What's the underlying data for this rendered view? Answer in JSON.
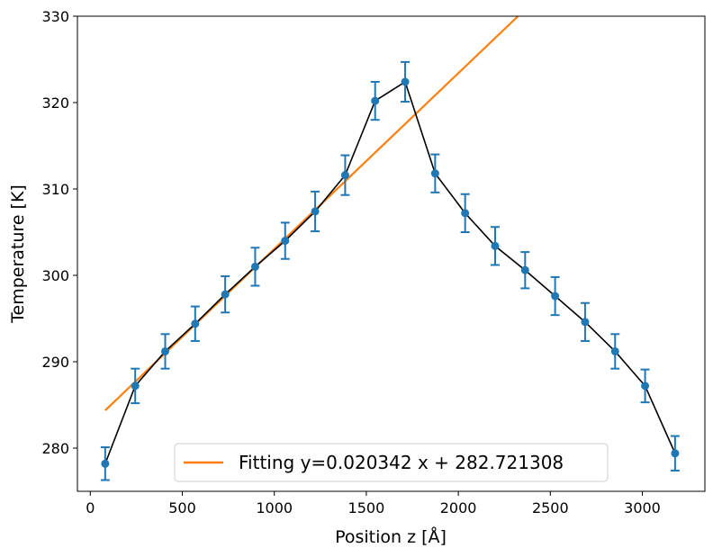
{
  "chart_data": {
    "type": "line",
    "xlabel": "Position z [Å]",
    "ylabel": "Temperature [K]",
    "xlim": [
      -70,
      3340
    ],
    "ylim": [
      275,
      330
    ],
    "x_ticks": [
      0,
      500,
      1000,
      1500,
      2000,
      2500,
      3000
    ],
    "y_ticks": [
      280,
      290,
      300,
      310,
      320,
      330
    ],
    "grid": false,
    "legend_position": "bottom-center",
    "series": [
      {
        "color": "#1f77b4",
        "line_color": "#000000",
        "points": [
          {
            "x": 81,
            "y": 278.2,
            "err": 1.9
          },
          {
            "x": 244,
            "y": 287.2,
            "err": 2.0
          },
          {
            "x": 407,
            "y": 291.2,
            "err": 2.0
          },
          {
            "x": 570,
            "y": 294.4,
            "err": 2.0
          },
          {
            "x": 733,
            "y": 297.8,
            "err": 2.1
          },
          {
            "x": 896,
            "y": 301.0,
            "err": 2.2
          },
          {
            "x": 1059,
            "y": 304.0,
            "err": 2.1
          },
          {
            "x": 1222,
            "y": 307.4,
            "err": 2.3
          },
          {
            "x": 1385,
            "y": 311.6,
            "err": 2.3
          },
          {
            "x": 1548,
            "y": 320.2,
            "err": 2.2
          },
          {
            "x": 1711,
            "y": 322.4,
            "err": 2.3
          },
          {
            "x": 1874,
            "y": 311.8,
            "err": 2.2
          },
          {
            "x": 2037,
            "y": 307.2,
            "err": 2.2
          },
          {
            "x": 2200,
            "y": 303.4,
            "err": 2.2
          },
          {
            "x": 2363,
            "y": 300.6,
            "err": 2.1
          },
          {
            "x": 2526,
            "y": 297.6,
            "err": 2.2
          },
          {
            "x": 2689,
            "y": 294.6,
            "err": 2.2
          },
          {
            "x": 2852,
            "y": 291.2,
            "err": 2.0
          },
          {
            "x": 3015,
            "y": 287.2,
            "err": 1.9
          },
          {
            "x": 3178,
            "y": 279.4,
            "err": 2.0
          }
        ]
      },
      {
        "name": "Fitting y=0.020342 x + 282.721308",
        "color": "#ff7f0e",
        "slope": 0.020342,
        "intercept": 282.721308,
        "x_range": [
          81,
          3178
        ]
      }
    ]
  }
}
